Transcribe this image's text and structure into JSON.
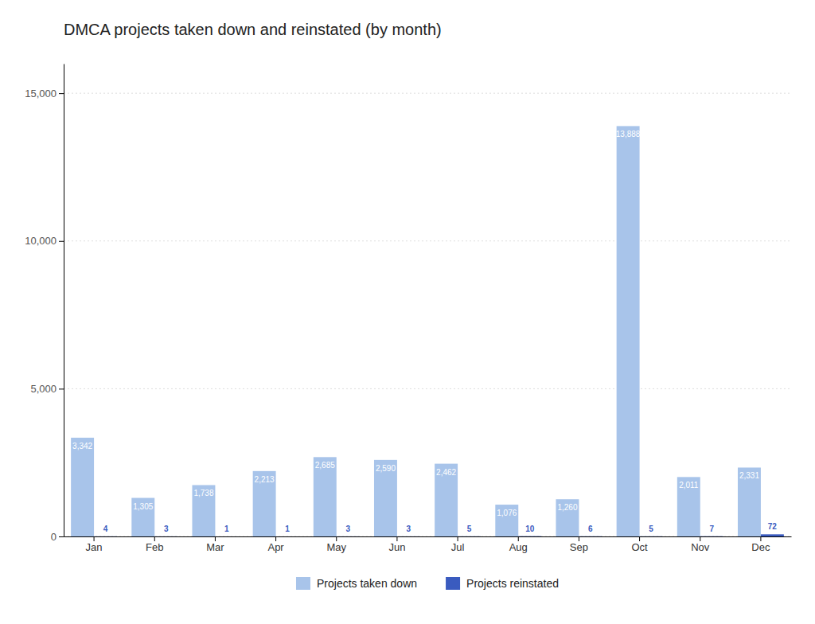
{
  "chart_data": {
    "type": "bar",
    "title": "DMCA projects taken down and reinstated (by month)",
    "categories": [
      "Jan",
      "Feb",
      "Mar",
      "Apr",
      "May",
      "Jun",
      "Jul",
      "Aug",
      "Sep",
      "Oct",
      "Nov",
      "Dec"
    ],
    "series": [
      {
        "name": "Projects taken down",
        "color": "#a8c4ea",
        "values": [
          3342,
          1305,
          1738,
          2213,
          2685,
          2590,
          2462,
          1076,
          1260,
          13888,
          2011,
          2331
        ],
        "value_labels": [
          "3,342",
          "1,305",
          "1,738",
          "2,213",
          "2,685",
          "2,590",
          "2,462",
          "1,076",
          "1,260",
          "13,888",
          "2,011",
          "2,331"
        ]
      },
      {
        "name": "Projects reinstated",
        "color": "#3a5bbf",
        "values": [
          4,
          3,
          1,
          1,
          3,
          3,
          5,
          10,
          6,
          5,
          7,
          72
        ]
      }
    ],
    "ylim": [
      0,
      16000
    ],
    "yticks": [
      0,
      {
        "value": 5000,
        "label": "5,000"
      },
      {
        "value": 10000,
        "label": "10,000"
      },
      {
        "value": 15000,
        "label": "15,000"
      }
    ],
    "grid": true,
    "legend": "bottom",
    "data_labels": true
  }
}
